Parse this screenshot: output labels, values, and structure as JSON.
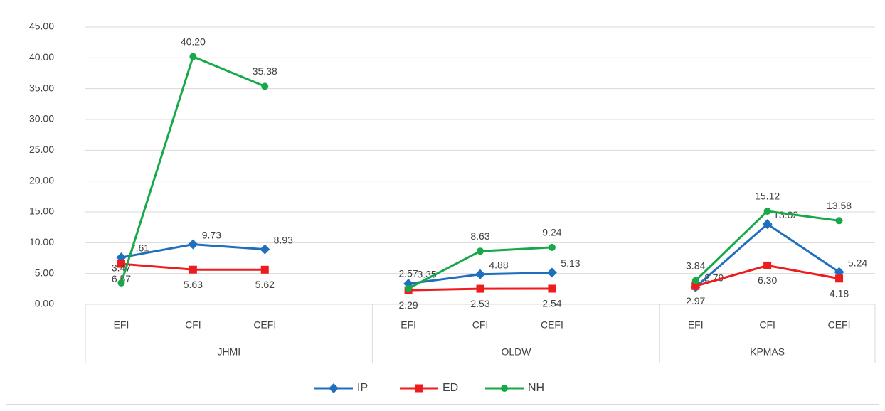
{
  "chart_data": {
    "type": "line",
    "categories": [
      "EFI",
      "CFI",
      "CEFI",
      null,
      "EFI",
      "CFI",
      "CEFI",
      null,
      "EFI",
      "CFI",
      "CEFI"
    ],
    "groups": [
      "JHMI",
      "OLDW",
      "KPMAS"
    ],
    "series": [
      {
        "name": "IP",
        "color": "#1f6fbf",
        "marker": "diamond",
        "values": [
          7.61,
          9.73,
          8.93,
          null,
          3.35,
          4.88,
          5.13,
          null,
          2.79,
          13.02,
          5.24
        ],
        "value_labels": [
          "7.61",
          "9.73",
          "8.93",
          null,
          "3.35",
          "4.88",
          "5.13",
          null,
          "2.79",
          "13.02",
          "5.24"
        ]
      },
      {
        "name": "ED",
        "color": "#ee1c1c",
        "marker": "square",
        "values": [
          6.57,
          5.63,
          5.62,
          null,
          2.29,
          2.53,
          2.54,
          null,
          2.97,
          6.3,
          4.18
        ],
        "value_labels": [
          "6.57",
          "5.63",
          "5.62",
          null,
          "2.29",
          "2.53",
          "2.54",
          null,
          "2.97",
          "6.30",
          "4.18"
        ]
      },
      {
        "name": "NH",
        "color": "#17a84a",
        "marker": "circle",
        "values": [
          3.47,
          40.2,
          35.38,
          null,
          2.57,
          8.63,
          9.24,
          null,
          3.84,
          15.12,
          13.58
        ],
        "value_labels": [
          "3.47",
          "40.20",
          "35.38",
          null,
          "2.57",
          "8.63",
          "9.24",
          null,
          "3.84",
          "15.12",
          "13.58"
        ]
      }
    ],
    "ylim": [
      0,
      45
    ],
    "yticks": [
      {
        "value": 0,
        "label": "0.00"
      },
      {
        "value": 5,
        "label": "5.00"
      },
      {
        "value": 10,
        "label": "10.00"
      },
      {
        "value": 15,
        "label": "15.00"
      },
      {
        "value": 20,
        "label": "20.00"
      },
      {
        "value": 25,
        "label": "25.00"
      },
      {
        "value": 30,
        "label": "30.00"
      },
      {
        "value": 35,
        "label": "35.00"
      },
      {
        "value": 40,
        "label": "40.00"
      },
      {
        "value": 45,
        "label": "45.00"
      }
    ],
    "grid": true,
    "legend": "bottom"
  }
}
